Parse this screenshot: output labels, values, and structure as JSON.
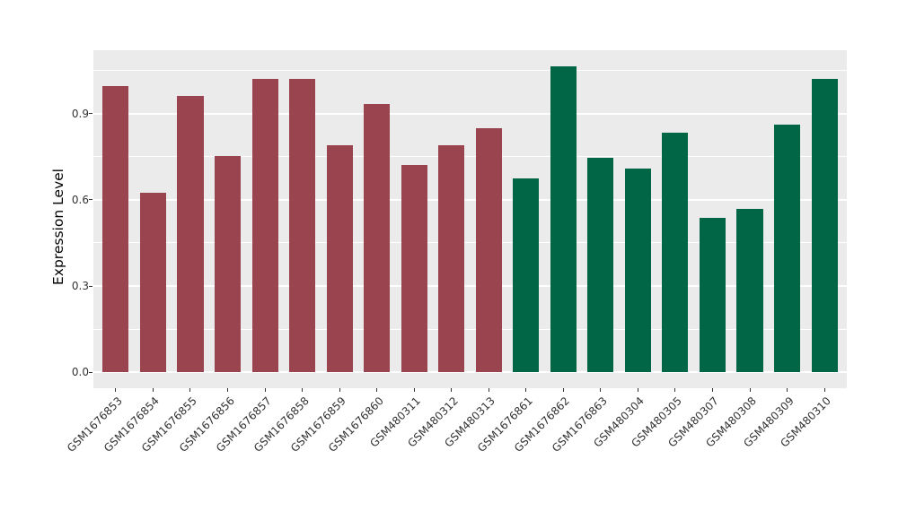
{
  "chart_data": {
    "type": "bar",
    "title": "",
    "xlabel": "",
    "ylabel": "Expression Level",
    "legend": "none",
    "x_tick_rotation_deg": 45,
    "categories": [
      "GSM1676853",
      "GSM1676854",
      "GSM1676855",
      "GSM1676856",
      "GSM1676857",
      "GSM1676858",
      "GSM1676859",
      "GSM1676860",
      "GSM480311",
      "GSM480312",
      "GSM480313",
      "GSM1676861",
      "GSM1676862",
      "GSM1676863",
      "GSM480304",
      "GSM480305",
      "GSM480307",
      "GSM480308",
      "GSM480309",
      "GSM480310"
    ],
    "values": [
      0.995,
      0.623,
      0.961,
      0.751,
      1.021,
      1.019,
      0.79,
      0.933,
      0.721,
      0.789,
      0.849,
      0.675,
      1.063,
      0.747,
      0.71,
      0.832,
      0.536,
      0.569,
      0.86,
      1.019
    ],
    "bar_groups": [
      "maroon",
      "maroon",
      "maroon",
      "maroon",
      "maroon",
      "maroon",
      "maroon",
      "maroon",
      "maroon",
      "maroon",
      "maroon",
      "green",
      "green",
      "green",
      "green",
      "green",
      "green",
      "green",
      "green",
      "green"
    ],
    "group_colors": {
      "maroon": "#9A4450",
      "green": "#006646"
    },
    "yticks": [
      {
        "value": 0.0,
        "label": "0.0"
      },
      {
        "value": 0.3,
        "label": "0.3"
      },
      {
        "value": 0.6,
        "label": "0.6"
      },
      {
        "value": 0.9,
        "label": "0.9"
      }
    ],
    "yticks_minor": [
      0.15,
      0.45,
      0.75,
      1.05
    ],
    "ylim": [
      -0.055,
      1.12
    ],
    "panel_bg": "#EBEBEB",
    "grid_major_color": "#FFFFFF",
    "grid_minor_color": "#FFFFFF"
  }
}
